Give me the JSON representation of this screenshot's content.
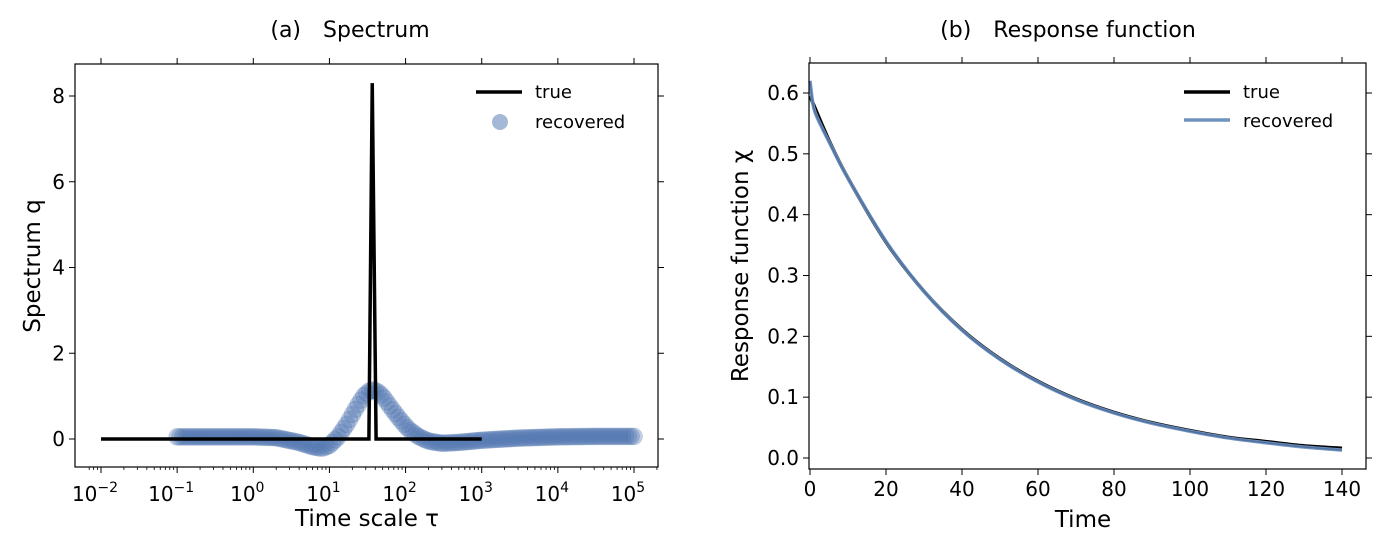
{
  "chart_data": [
    {
      "type": "line",
      "panel": "(a)",
      "title": "Spectrum",
      "xlabel": "Time scale τ",
      "ylabel": "Spectrum q",
      "xscale": "log",
      "xlim": [
        0.006,
        250000
      ],
      "ylim": [
        -0.65,
        8.75
      ],
      "xticks": [
        0.01,
        0.1,
        1,
        10,
        100,
        1000,
        10000,
        100000
      ],
      "xtick_labels": [
        {
          "base": "10",
          "exp": "−2"
        },
        {
          "base": "10",
          "exp": "−1"
        },
        {
          "base": "10",
          "exp": "0"
        },
        {
          "base": "10",
          "exp": "1"
        },
        {
          "base": "10",
          "exp": "2"
        },
        {
          "base": "10",
          "exp": "3"
        },
        {
          "base": "10",
          "exp": "4"
        },
        {
          "base": "10",
          "exp": "5"
        }
      ],
      "yticks": [
        0,
        2,
        4,
        6,
        8
      ],
      "ytick_labels": [
        "0",
        "2",
        "4",
        "6",
        "8"
      ],
      "grid": false,
      "legend_position": "top-right",
      "series": [
        {
          "name": "true",
          "style": "line",
          "color": "#000000",
          "x": [
            0.01,
            30,
            33,
            37,
            41,
            45,
            100000
          ],
          "y": [
            0,
            0,
            0,
            8.3,
            0,
            0,
            0
          ],
          "x_end": 1000
        },
        {
          "name": "recovered",
          "style": "markers",
          "color": "#4c72b0",
          "x": [
            0.1,
            0.3,
            1,
            2,
            4,
            6,
            8,
            10,
            13,
            17,
            22,
            28,
            35,
            42,
            50,
            65,
            85,
            110,
            150,
            200,
            300,
            500,
            1000,
            3000,
            10000,
            30000,
            100000
          ],
          "y": [
            0.05,
            0.05,
            0.05,
            0.03,
            -0.08,
            -0.18,
            -0.22,
            -0.15,
            0.05,
            0.35,
            0.7,
            1.0,
            1.15,
            1.12,
            1.0,
            0.72,
            0.45,
            0.22,
            0.05,
            -0.05,
            -0.1,
            -0.08,
            -0.03,
            0.02,
            0.05,
            0.06,
            0.06
          ]
        }
      ]
    },
    {
      "type": "line",
      "panel": "(b)",
      "title": "Response function",
      "xlabel": "Time",
      "ylabel": "Response function χ",
      "xlim": [
        -1,
        146
      ],
      "ylim": [
        -0.017,
        0.65
      ],
      "xticks": [
        0,
        20,
        40,
        60,
        80,
        100,
        120,
        140
      ],
      "xtick_labels": [
        "0",
        "20",
        "40",
        "60",
        "80",
        "100",
        "120",
        "140"
      ],
      "yticks": [
        0.0,
        0.1,
        0.2,
        0.3,
        0.4,
        0.5,
        0.6
      ],
      "ytick_labels": [
        "0.0",
        "0.1",
        "0.2",
        "0.3",
        "0.4",
        "0.5",
        "0.6"
      ],
      "grid": false,
      "legend_position": "top-right",
      "series": [
        {
          "name": "true",
          "color": "#000000",
          "x": [
            0,
            5,
            10,
            20,
            30,
            40,
            50,
            60,
            70,
            80,
            90,
            100,
            110,
            120,
            130,
            140
          ],
          "y": [
            0.595,
            0.522,
            0.46,
            0.355,
            0.274,
            0.211,
            0.163,
            0.126,
            0.097,
            0.075,
            0.058,
            0.045,
            0.034,
            0.027,
            0.02,
            0.016
          ]
        },
        {
          "name": "recovered",
          "color": "#7094c0",
          "x": [
            0,
            1,
            3,
            5,
            10,
            20,
            30,
            40,
            50,
            60,
            70,
            80,
            90,
            100,
            110,
            120,
            130,
            140
          ],
          "y": [
            0.62,
            0.575,
            0.545,
            0.52,
            0.46,
            0.356,
            0.274,
            0.21,
            0.162,
            0.125,
            0.096,
            0.074,
            0.057,
            0.044,
            0.033,
            0.025,
            0.018,
            0.013
          ]
        }
      ]
    }
  ]
}
